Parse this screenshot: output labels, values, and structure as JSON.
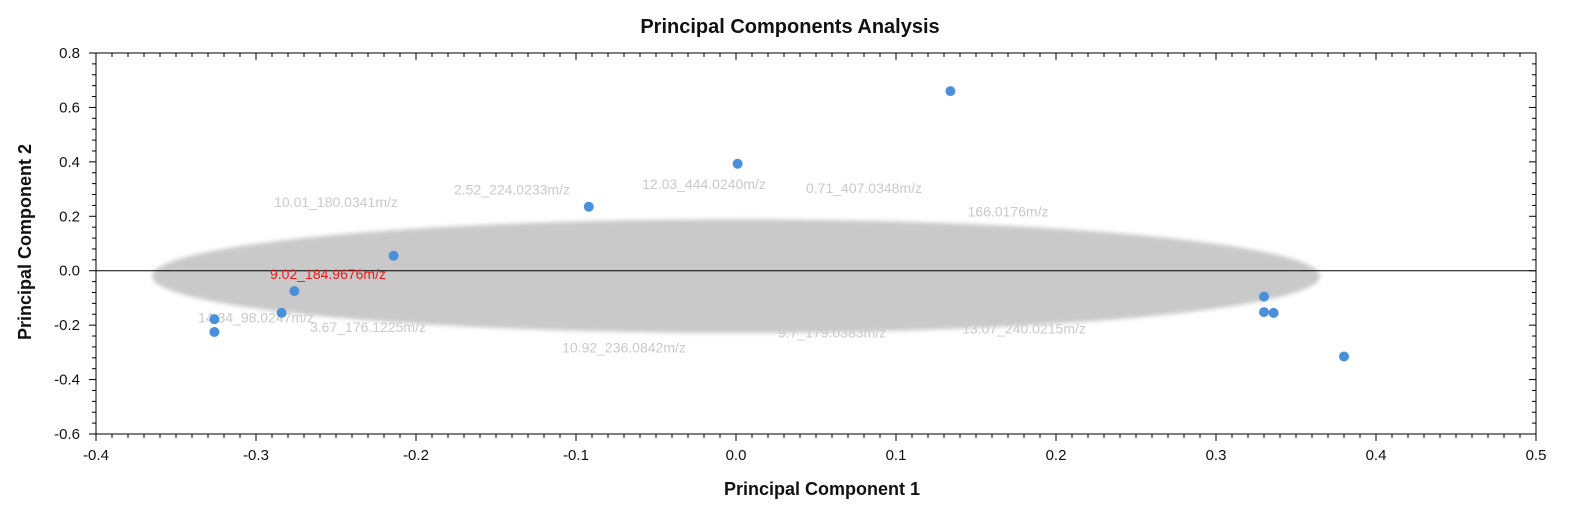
{
  "chart_data": {
    "type": "scatter",
    "title": "Principal Components Analysis",
    "xlabel": "Principal Component 1",
    "ylabel": "Principal Component 2",
    "xlim": [
      -0.4,
      0.5
    ],
    "ylim": [
      -0.6,
      0.8
    ],
    "xticks": [
      "-0.4",
      "-0.3",
      "-0.2",
      "-0.1",
      "0.0",
      "0.1",
      "0.2",
      "0.3",
      "0.4",
      "0.5"
    ],
    "yticks": [
      "0.8",
      "0.6",
      "0.4",
      "0.2",
      "0.0",
      "-0.2",
      "-0.4",
      "-0.6"
    ],
    "zero_line": "y=0",
    "grid": false,
    "point_color": "#4a90d9",
    "points": [
      {
        "x": -0.326,
        "y": -0.178
      },
      {
        "x": -0.326,
        "y": -0.225
      },
      {
        "x": -0.284,
        "y": -0.155
      },
      {
        "x": -0.276,
        "y": -0.075
      },
      {
        "x": -0.214,
        "y": 0.055
      },
      {
        "x": -0.092,
        "y": 0.235
      },
      {
        "x": 0.001,
        "y": 0.393
      },
      {
        "x": 0.134,
        "y": 0.66
      },
      {
        "x": 0.33,
        "y": -0.095
      },
      {
        "x": 0.33,
        "y": -0.152
      },
      {
        "x": 0.336,
        "y": -0.155
      },
      {
        "x": 0.38,
        "y": -0.315
      }
    ],
    "label_cloud_color": "#c9c9c9",
    "label_cloud_extent": {
      "x": [
        -0.365,
        0.365
      ],
      "y": [
        -0.3,
        0.28
      ]
    },
    "cloud_labels": [
      {
        "text": "10.92_236.0842m/z",
        "x": -0.07,
        "y": -0.3
      },
      {
        "text": "13.07_240.0215m/z",
        "x": 0.18,
        "y": -0.23
      },
      {
        "text": "9.7_179.0383m/z",
        "x": 0.06,
        "y": -0.245
      },
      {
        "text": "166.0176m/z",
        "x": 0.17,
        "y": 0.2
      },
      {
        "text": "3.67_176.1225m/z",
        "x": -0.23,
        "y": -0.225
      },
      {
        "text": "14.34_98.0247m/z",
        "x": -0.3,
        "y": -0.19
      },
      {
        "text": "2.52_224.0233m/z",
        "x": -0.14,
        "y": 0.28
      },
      {
        "text": "10.01_180.0341m/z",
        "x": -0.25,
        "y": 0.235
      },
      {
        "text": "12.03_444.0240m/z",
        "x": -0.02,
        "y": 0.3
      },
      {
        "text": "0.71_407.0348m/z",
        "x": 0.08,
        "y": 0.285
      }
    ],
    "highlight_label": {
      "text": "9.02_184.9676m/z",
      "x": -0.255,
      "y": -0.03,
      "color": "#e8191c"
    }
  }
}
